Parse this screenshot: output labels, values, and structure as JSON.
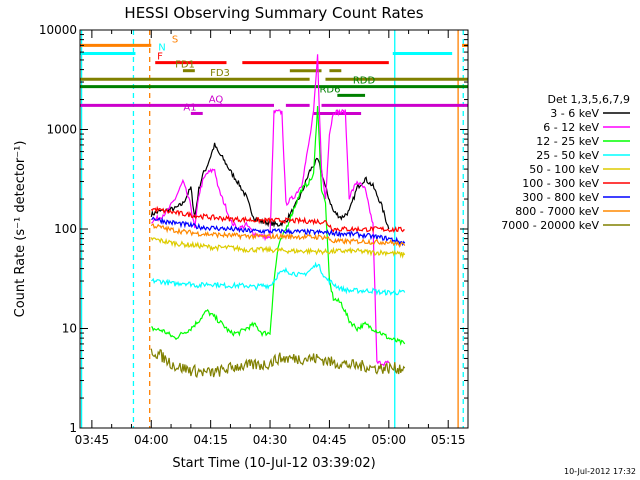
{
  "chart_data": {
    "type": "line",
    "title": "HESSI Observing Summary Count Rates",
    "xlabel": "Start Time (10-Jul-12 03:39:02)",
    "ylabel": "Count Rate (s⁻¹ detector⁻¹)",
    "y_scale": "log",
    "ylim": [
      1,
      10000
    ],
    "xlim_minutes": [
      222,
      320
    ],
    "x_tick_labels": [
      "03:45",
      "04:00",
      "04:15",
      "04:30",
      "04:45",
      "05:00",
      "05:15"
    ],
    "x_tick_minutes": [
      225,
      240,
      255,
      270,
      285,
      300,
      315
    ],
    "y_tick_labels": [
      "1",
      "10",
      "100",
      "1000",
      "10000"
    ],
    "y_tick_values": [
      1,
      10,
      100,
      1000,
      10000
    ],
    "footer_date": "10-Jul-2012 17:32",
    "legend_title": "Det 1,3,5,6,7,9",
    "legend_position": "right",
    "series": [
      {
        "name": "3 - 6 keV",
        "color": "#000000",
        "points": [
          [
            240,
            140
          ],
          [
            242,
            150
          ],
          [
            246,
            160
          ],
          [
            248,
            180
          ],
          [
            250,
            260
          ],
          [
            251,
            130
          ],
          [
            252,
            250
          ],
          [
            253,
            350
          ],
          [
            254,
            420
          ],
          [
            256,
            700
          ],
          [
            257,
            580
          ],
          [
            258,
            520
          ],
          [
            260,
            380
          ],
          [
            262,
            290
          ],
          [
            264,
            210
          ],
          [
            265,
            160
          ],
          [
            266,
            130
          ],
          [
            268,
            118
          ],
          [
            270,
            115
          ],
          [
            272,
            110
          ],
          [
            274,
            120
          ],
          [
            276,
            160
          ],
          [
            278,
            230
          ],
          [
            280,
            380
          ],
          [
            282,
            500
          ],
          [
            283,
            380
          ],
          [
            284,
            260
          ],
          [
            286,
            150
          ],
          [
            288,
            130
          ],
          [
            290,
            150
          ],
          [
            292,
            260
          ],
          [
            294,
            320
          ],
          [
            296,
            270
          ],
          [
            298,
            180
          ],
          [
            300,
            100
          ]
        ]
      },
      {
        "name": "6 - 12 keV",
        "color": "#ff00ff",
        "points": [
          [
            240,
            120
          ],
          [
            242,
            130
          ],
          [
            244,
            150
          ],
          [
            246,
            200
          ],
          [
            248,
            300
          ],
          [
            250,
            170
          ],
          [
            251,
            100
          ],
          [
            252,
            220
          ],
          [
            253,
            300
          ],
          [
            254,
            360
          ],
          [
            256,
            400
          ],
          [
            257,
            250
          ],
          [
            258,
            200
          ],
          [
            259,
            160
          ],
          [
            260,
            120
          ],
          [
            262,
            100
          ],
          [
            264,
            110
          ],
          [
            266,
            90
          ],
          [
            268,
            85
          ],
          [
            270,
            80
          ],
          [
            271,
            1500
          ],
          [
            273,
            1500
          ],
          [
            274,
            180
          ],
          [
            276,
            210
          ],
          [
            278,
            280
          ],
          [
            280,
            800
          ],
          [
            281,
            1500
          ],
          [
            282,
            5500
          ],
          [
            283,
            400
          ],
          [
            284,
            200
          ],
          [
            285,
            900
          ],
          [
            286,
            1500
          ],
          [
            287,
            1500
          ],
          [
            288,
            1500
          ],
          [
            289,
            1500
          ],
          [
            290,
            210
          ],
          [
            292,
            300
          ],
          [
            294,
            250
          ],
          [
            296,
            110
          ],
          [
            297,
            4.5
          ],
          [
            300,
            4.5
          ]
        ]
      },
      {
        "name": "12 - 25 keV",
        "color": "#00ff00",
        "points": [
          [
            240,
            10
          ],
          [
            243,
            9.5
          ],
          [
            246,
            8
          ],
          [
            248,
            9
          ],
          [
            250,
            10
          ],
          [
            252,
            12
          ],
          [
            254,
            15
          ],
          [
            256,
            13
          ],
          [
            258,
            11
          ],
          [
            260,
            9
          ],
          [
            262,
            9
          ],
          [
            264,
            10
          ],
          [
            266,
            11
          ],
          [
            268,
            9
          ],
          [
            270,
            9
          ],
          [
            271,
            30
          ],
          [
            272,
            65
          ],
          [
            274,
            100
          ],
          [
            276,
            160
          ],
          [
            278,
            250
          ],
          [
            280,
            300
          ],
          [
            281,
            350
          ],
          [
            282,
            1800
          ],
          [
            283,
            250
          ],
          [
            284,
            180
          ],
          [
            285,
            30
          ],
          [
            286,
            20
          ],
          [
            288,
            18
          ],
          [
            290,
            12
          ],
          [
            292,
            10
          ],
          [
            294,
            11
          ],
          [
            296,
            10
          ],
          [
            298,
            9
          ],
          [
            300,
            8
          ],
          [
            304,
            7
          ]
        ]
      },
      {
        "name": "25 - 50 keV",
        "color": "#00ffff",
        "points": [
          [
            240,
            30
          ],
          [
            242,
            30
          ],
          [
            244,
            29
          ],
          [
            246,
            28
          ],
          [
            248,
            29
          ],
          [
            250,
            28
          ],
          [
            252,
            27
          ],
          [
            254,
            28
          ],
          [
            256,
            28
          ],
          [
            258,
            27
          ],
          [
            260,
            27
          ],
          [
            262,
            27
          ],
          [
            264,
            27
          ],
          [
            266,
            26
          ],
          [
            268,
            27
          ],
          [
            270,
            27
          ],
          [
            271,
            30
          ],
          [
            272,
            35
          ],
          [
            274,
            38
          ],
          [
            276,
            36
          ],
          [
            278,
            34
          ],
          [
            280,
            38
          ],
          [
            282,
            45
          ],
          [
            284,
            32
          ],
          [
            286,
            28
          ],
          [
            288,
            25
          ],
          [
            290,
            24
          ],
          [
            292,
            24
          ],
          [
            294,
            24
          ],
          [
            296,
            24
          ],
          [
            298,
            23
          ],
          [
            300,
            23
          ],
          [
            304,
            23
          ]
        ]
      },
      {
        "name": "50 - 100 keV",
        "color": "#ddcc00",
        "points": [
          [
            240,
            80
          ],
          [
            244,
            74
          ],
          [
            248,
            70
          ],
          [
            252,
            68
          ],
          [
            256,
            65
          ],
          [
            260,
            65
          ],
          [
            264,
            62
          ],
          [
            268,
            62
          ],
          [
            272,
            61
          ],
          [
            276,
            60
          ],
          [
            280,
            60
          ],
          [
            284,
            59
          ],
          [
            288,
            60
          ],
          [
            292,
            60
          ],
          [
            296,
            58
          ],
          [
            300,
            58
          ],
          [
            304,
            55
          ]
        ]
      },
      {
        "name": "100 - 300 keV",
        "color": "#ff0000",
        "points": [
          [
            240,
            160
          ],
          [
            244,
            150
          ],
          [
            248,
            142
          ],
          [
            252,
            135
          ],
          [
            256,
            130
          ],
          [
            260,
            126
          ],
          [
            264,
            124
          ],
          [
            268,
            122
          ],
          [
            272,
            122
          ],
          [
            276,
            121
          ],
          [
            280,
            120
          ],
          [
            284,
            118
          ],
          [
            286,
            100
          ],
          [
            290,
            100
          ],
          [
            294,
            99
          ],
          [
            296,
            100
          ],
          [
            300,
            99
          ],
          [
            304,
            98
          ]
        ]
      },
      {
        "name": "300 - 800 keV",
        "color": "#0000ff",
        "points": [
          [
            240,
            130
          ],
          [
            244,
            118
          ],
          [
            248,
            112
          ],
          [
            252,
            105
          ],
          [
            256,
            102
          ],
          [
            260,
            100
          ],
          [
            264,
            96
          ],
          [
            268,
            95
          ],
          [
            272,
            95
          ],
          [
            276,
            94
          ],
          [
            280,
            93
          ],
          [
            284,
            92
          ],
          [
            288,
            90
          ],
          [
            292,
            88
          ],
          [
            296,
            84
          ],
          [
            300,
            80
          ],
          [
            304,
            72
          ]
        ]
      },
      {
        "name": "800 - 7000 keV",
        "color": "#ff8800",
        "points": [
          [
            240,
            110
          ],
          [
            244,
            100
          ],
          [
            248,
            94
          ],
          [
            252,
            90
          ],
          [
            256,
            88
          ],
          [
            260,
            86
          ],
          [
            264,
            85
          ],
          [
            268,
            84
          ],
          [
            272,
            84
          ],
          [
            276,
            84
          ],
          [
            280,
            83
          ],
          [
            284,
            83
          ],
          [
            286,
            75
          ],
          [
            290,
            75
          ],
          [
            294,
            75
          ],
          [
            296,
            74
          ],
          [
            300,
            74
          ],
          [
            304,
            68
          ]
        ]
      },
      {
        "name": "7000 - 20000 keV",
        "color": "#808000",
        "points": [
          [
            240,
            6
          ],
          [
            242,
            5.5
          ],
          [
            244,
            4.8
          ],
          [
            246,
            4.2
          ],
          [
            248,
            4
          ],
          [
            250,
            3.8
          ],
          [
            252,
            3.7
          ],
          [
            254,
            3.6
          ],
          [
            256,
            3.6
          ],
          [
            258,
            3.8
          ],
          [
            260,
            4
          ],
          [
            262,
            4.2
          ],
          [
            264,
            4.2
          ],
          [
            266,
            4.3
          ],
          [
            268,
            4.3
          ],
          [
            270,
            4.5
          ],
          [
            272,
            5
          ],
          [
            274,
            5
          ],
          [
            276,
            5
          ],
          [
            278,
            5
          ],
          [
            280,
            5
          ],
          [
            282,
            5
          ],
          [
            284,
            4.8
          ],
          [
            286,
            4.5
          ],
          [
            288,
            4.5
          ],
          [
            290,
            4.3
          ],
          [
            292,
            4.2
          ],
          [
            294,
            4.2
          ],
          [
            296,
            4
          ],
          [
            298,
            4
          ],
          [
            300,
            4
          ],
          [
            304,
            4
          ]
        ]
      }
    ],
    "flag_bars": [
      {
        "label": "S",
        "color": "#ff8000",
        "y": 7000,
        "segments": [
          [
            222,
            240
          ],
          [
            318.5,
            320
          ]
        ]
      },
      {
        "label": "N",
        "color": "#00ffff",
        "y": 5800,
        "segments": [
          [
            222,
            236
          ],
          [
            301,
            316
          ]
        ]
      },
      {
        "label": "F",
        "color": "#ff0000",
        "y": 4700,
        "segments": [
          [
            241,
            259
          ],
          [
            263,
            300
          ]
        ]
      },
      {
        "label": "FD1",
        "color": "#808000",
        "y": 3900,
        "segments": [
          [
            248,
            251
          ],
          [
            275,
            283
          ],
          [
            285,
            288
          ]
        ]
      },
      {
        "label": "FD3",
        "color": "#808000",
        "y": 3200,
        "segments": [
          [
            222,
            280
          ],
          [
            284,
            320
          ]
        ]
      },
      {
        "label": "RDD",
        "color": "#008000",
        "y": 2700,
        "segments": [
          [
            222,
            320
          ]
        ]
      },
      {
        "label": "RD6",
        "color": "#008000",
        "y": 2200,
        "segments": [
          [
            287,
            294
          ]
        ]
      },
      {
        "label": "AQ",
        "color": "#cc00cc",
        "y": 1750,
        "segments": [
          [
            222,
            271
          ],
          [
            274,
            280
          ],
          [
            283,
            320
          ]
        ]
      },
      {
        "label": "A1",
        "color": "#cc00cc",
        "y": 1450,
        "segments": [
          [
            250,
            253
          ],
          [
            281,
            293
          ]
        ]
      }
    ],
    "vertical_lines": [
      {
        "x": 222.4,
        "color": "#00ffff",
        "dashed": false
      },
      {
        "x": 235.5,
        "color": "#00ffff",
        "dashed": true
      },
      {
        "x": 239.6,
        "color": "#ff8000",
        "dashed": true
      },
      {
        "x": 301.5,
        "color": "#00ffff",
        "dashed": false
      },
      {
        "x": 317.5,
        "color": "#ff8000",
        "dashed": false
      },
      {
        "x": 318.8,
        "color": "#00ffff",
        "dashed": true
      }
    ]
  }
}
